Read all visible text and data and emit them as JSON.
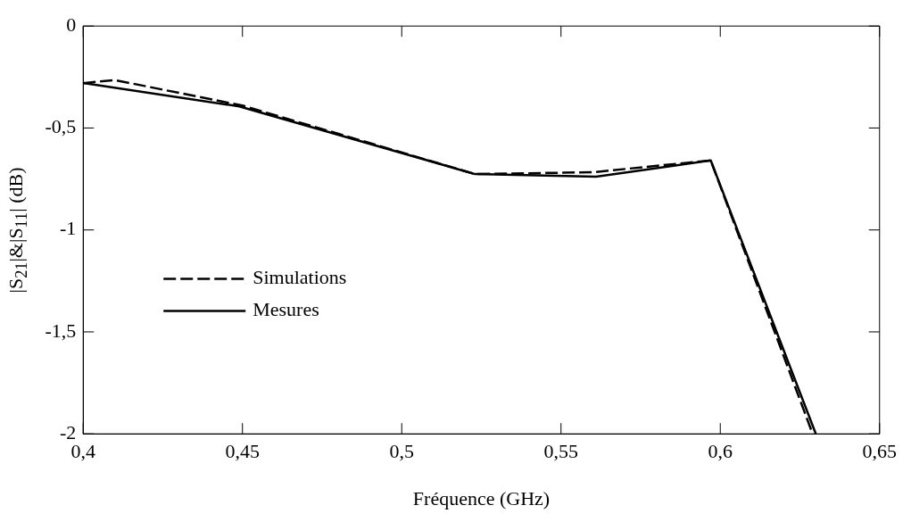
{
  "chart_data": {
    "type": "line",
    "xlabel": "Fréquence (GHz)",
    "ylabel": "|S$_{21}$|&|S$_{11}$| (dB)",
    "series": [
      {
        "name": "Simulations",
        "color": "#000000",
        "line_style": "dashed",
        "x": [
          0.4,
          0.41,
          0.45,
          0.523,
          0.56,
          0.597,
          0.629
        ],
        "values": [
          -0.28,
          -0.265,
          -0.39,
          -0.726,
          -0.717,
          -0.659,
          -2
        ]
      },
      {
        "name": "Mesures",
        "color": "#000000",
        "line_style": "solid",
        "x": [
          0.4,
          0.449,
          0.523,
          0.561,
          0.597,
          0.63
        ],
        "values": [
          -0.279,
          -0.394,
          -0.726,
          -0.739,
          -0.659,
          -2
        ]
      }
    ],
    "xlim": [
      0.4,
      0.65
    ],
    "xticks": [
      {
        "value": 0.4,
        "label": "0,4"
      },
      {
        "value": 0.45,
        "label": "0,45"
      },
      {
        "value": 0.5,
        "label": "0,5"
      },
      {
        "value": 0.55,
        "label": "0,55"
      },
      {
        "value": 0.6,
        "label": "0,6"
      },
      {
        "value": 0.65,
        "label": "0,65"
      }
    ],
    "ylim": [
      -2,
      0
    ],
    "yticks": [
      {
        "value": -2,
        "label": "-2"
      },
      {
        "value": -1.5,
        "label": "-1,5"
      },
      {
        "value": -1,
        "label": "-1"
      },
      {
        "value": -0.5,
        "label": "-0,5"
      },
      {
        "value": 0,
        "label": "0"
      }
    ],
    "grid": false,
    "legend": "left",
    "marker": "none"
  }
}
